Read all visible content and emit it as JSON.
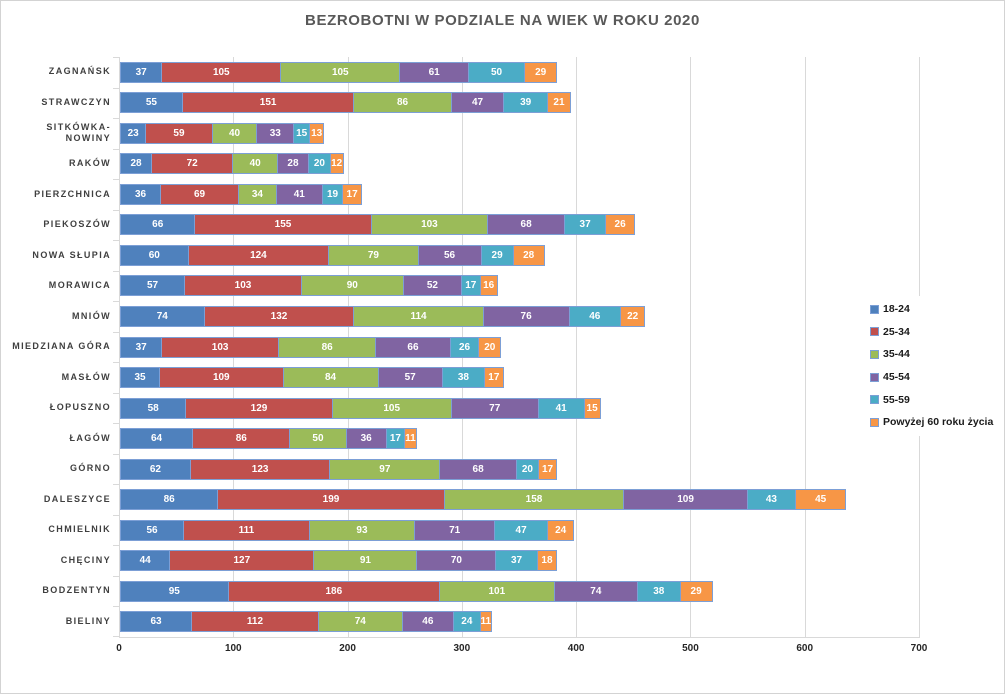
{
  "chart_data": {
    "type": "bar",
    "orientation": "horizontal",
    "stacked": true,
    "title": "BEZROBOTNI W PODZIALE NA WIEK W ROKU 2020",
    "categories": [
      "ZAGNAŃSK",
      "STRAWCZYN",
      "SITKÓWKA-NOWINY",
      "RAKÓW",
      "PIERZCHNICA",
      "PIEKOSZÓW",
      "NOWA SŁUPIA",
      "MORAWICA",
      "MNIÓW",
      "MIEDZIANA GÓRA",
      "MASŁÓW",
      "ŁOPUSZNO",
      "ŁAGÓW",
      "GÓRNO",
      "DALESZYCE",
      "CHMIELNIK",
      "CHĘCINY",
      "BODZENTYN",
      "BIELINY"
    ],
    "series": [
      {
        "name": "18-24",
        "color": "#4F81BD",
        "values": [
          37,
          55,
          23,
          28,
          36,
          66,
          60,
          57,
          74,
          37,
          35,
          58,
          64,
          62,
          86,
          56,
          44,
          95,
          63
        ]
      },
      {
        "name": "25-34",
        "color": "#C0504D",
        "values": [
          105,
          151,
          59,
          72,
          69,
          155,
          124,
          103,
          132,
          103,
          109,
          129,
          86,
          123,
          199,
          111,
          127,
          186,
          112
        ]
      },
      {
        "name": "35-44",
        "color": "#9BBB59",
        "values": [
          105,
          86,
          40,
          40,
          34,
          103,
          79,
          90,
          114,
          86,
          84,
          105,
          50,
          97,
          158,
          93,
          91,
          101,
          74
        ]
      },
      {
        "name": "45-54",
        "color": "#8064A2",
        "values": [
          61,
          47,
          33,
          28,
          41,
          68,
          56,
          52,
          76,
          66,
          57,
          77,
          36,
          68,
          109,
          71,
          70,
          74,
          46
        ]
      },
      {
        "name": "55-59",
        "color": "#4BACC6",
        "values": [
          50,
          39,
          15,
          20,
          19,
          37,
          29,
          17,
          46,
          26,
          38,
          41,
          17,
          20,
          43,
          47,
          37,
          38,
          24
        ]
      },
      {
        "name": "Powyżej 60 roku życia",
        "color": "#F79646",
        "values": [
          29,
          21,
          13,
          12,
          17,
          26,
          28,
          16,
          22,
          20,
          17,
          15,
          11,
          17,
          45,
          24,
          18,
          29,
          11
        ]
      }
    ],
    "x_axis": {
      "min": 0,
      "max": 700,
      "step": 100,
      "ticks": [
        0,
        100,
        200,
        300,
        400,
        500,
        600,
        700
      ]
    },
    "legend": {
      "position": "right"
    },
    "grid": true,
    "value_labels": "inside-center",
    "colors": {
      "segment_border": "#7C9FD6",
      "grid": "#D9D9D9",
      "title_text": "#595959",
      "category_text": "#3F3F3F",
      "axis_text": "#262626",
      "value_text": "#FFFFFF",
      "background": "#FFFFFF"
    }
  }
}
